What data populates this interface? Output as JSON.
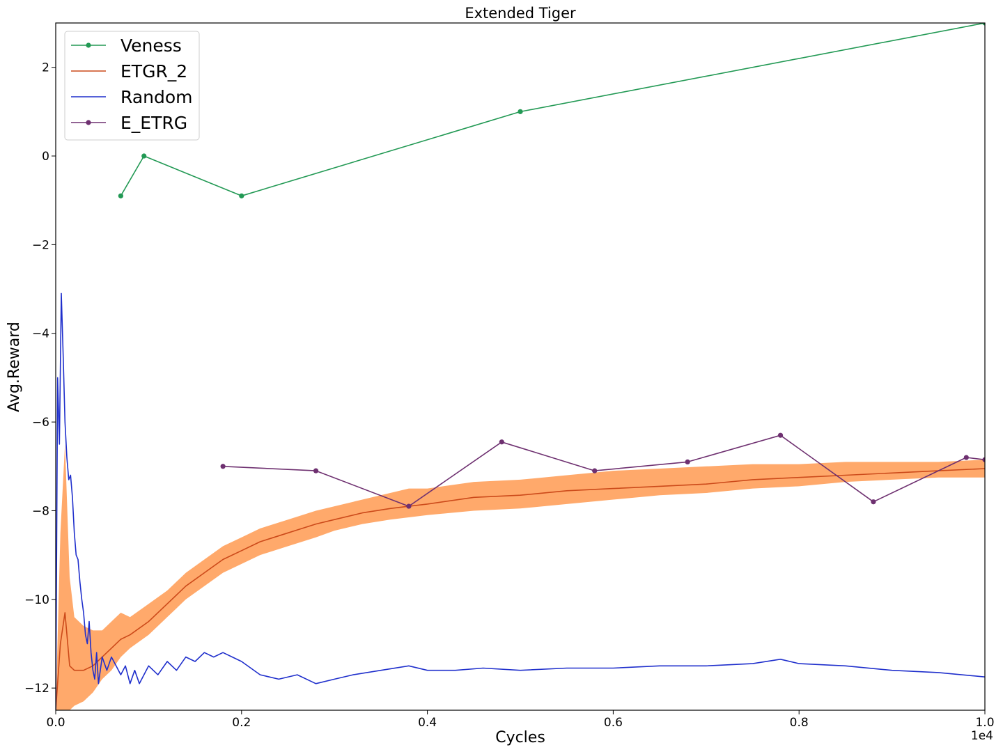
{
  "chart_data": {
    "type": "line",
    "title": "Extended Tiger",
    "xlabel": "Cycles",
    "ylabel": "Avg.Reward",
    "x_offset_label": "1e4",
    "xlim": [
      0,
      1.0
    ],
    "ylim": [
      -12.5,
      3.0
    ],
    "x_ticks": [
      0.0,
      0.2,
      0.4,
      0.6,
      0.8,
      1.0
    ],
    "x_tick_labels": [
      "0.0",
      "0.2",
      "0.4",
      "0.6",
      "0.8",
      "1.0"
    ],
    "y_ticks": [
      -12,
      -10,
      -8,
      -6,
      -4,
      -2,
      0,
      2
    ],
    "y_tick_labels": [
      "−12",
      "−10",
      "−8",
      "−6",
      "−4",
      "−2",
      "0",
      "2"
    ],
    "grid": false,
    "legend_position": "top-left",
    "series": [
      {
        "name": "Veness",
        "color": "#229954",
        "marker": "circle",
        "x": [
          0.07,
          0.095,
          0.2,
          0.5,
          1.0
        ],
        "y": [
          -0.9,
          0.0,
          -0.9,
          1.0,
          3.0
        ]
      },
      {
        "name": "ETGR_2",
        "color": "#cc4a1a",
        "band_color": "#ffa96b",
        "marker": "none",
        "x": [
          0.0,
          0.005,
          0.01,
          0.015,
          0.02,
          0.03,
          0.04,
          0.05,
          0.06,
          0.07,
          0.08,
          0.1,
          0.12,
          0.14,
          0.16,
          0.18,
          0.2,
          0.22,
          0.25,
          0.28,
          0.3,
          0.33,
          0.36,
          0.38,
          0.4,
          0.45,
          0.5,
          0.55,
          0.6,
          0.65,
          0.7,
          0.75,
          0.8,
          0.85,
          0.9,
          0.95,
          1.0
        ],
        "y": [
          -12.5,
          -11.0,
          -10.3,
          -11.5,
          -11.6,
          -11.6,
          -11.5,
          -11.3,
          -11.1,
          -10.9,
          -10.8,
          -10.5,
          -10.1,
          -9.7,
          -9.4,
          -9.1,
          -8.9,
          -8.7,
          -8.5,
          -8.3,
          -8.2,
          -8.05,
          -7.95,
          -7.9,
          -7.85,
          -7.7,
          -7.65,
          -7.55,
          -7.5,
          -7.45,
          -7.4,
          -7.3,
          -7.25,
          -7.2,
          -7.15,
          -7.1,
          -7.05
        ],
        "y_lower": [
          -12.5,
          -12.5,
          -12.5,
          -12.5,
          -12.4,
          -12.3,
          -12.1,
          -11.8,
          -11.6,
          -11.3,
          -11.1,
          -10.8,
          -10.4,
          -10.0,
          -9.7,
          -9.4,
          -9.2,
          -9.0,
          -8.8,
          -8.6,
          -8.45,
          -8.3,
          -8.2,
          -8.15,
          -8.1,
          -8.0,
          -7.95,
          -7.85,
          -7.75,
          -7.65,
          -7.6,
          -7.5,
          -7.45,
          -7.35,
          -7.3,
          -7.25,
          -7.25
        ],
        "y_upper": [
          -12.5,
          -8.5,
          -6.5,
          -9.5,
          -10.4,
          -10.6,
          -10.7,
          -10.7,
          -10.5,
          -10.3,
          -10.4,
          -10.1,
          -9.8,
          -9.4,
          -9.1,
          -8.8,
          -8.6,
          -8.4,
          -8.2,
          -8.0,
          -7.9,
          -7.75,
          -7.6,
          -7.5,
          -7.5,
          -7.35,
          -7.3,
          -7.2,
          -7.1,
          -7.05,
          -7.0,
          -6.95,
          -6.95,
          -6.9,
          -6.9,
          -6.9,
          -6.85
        ]
      },
      {
        "name": "Random",
        "color": "#1f2fcc",
        "marker": "none",
        "x": [
          0.0,
          0.002,
          0.004,
          0.006,
          0.008,
          0.01,
          0.012,
          0.014,
          0.016,
          0.018,
          0.02,
          0.022,
          0.024,
          0.026,
          0.028,
          0.03,
          0.032,
          0.034,
          0.036,
          0.038,
          0.04,
          0.042,
          0.044,
          0.046,
          0.048,
          0.05,
          0.055,
          0.06,
          0.065,
          0.07,
          0.075,
          0.08,
          0.085,
          0.09,
          0.1,
          0.11,
          0.12,
          0.13,
          0.14,
          0.15,
          0.16,
          0.17,
          0.18,
          0.19,
          0.2,
          0.22,
          0.24,
          0.26,
          0.28,
          0.3,
          0.32,
          0.35,
          0.38,
          0.4,
          0.43,
          0.46,
          0.5,
          0.55,
          0.6,
          0.65,
          0.7,
          0.75,
          0.78,
          0.8,
          0.85,
          0.9,
          0.95,
          1.0
        ],
        "y": [
          -12.5,
          -5.0,
          -6.5,
          -3.1,
          -4.5,
          -6.0,
          -6.8,
          -7.3,
          -7.2,
          -7.7,
          -8.5,
          -9.0,
          -9.1,
          -9.6,
          -10.0,
          -10.3,
          -10.8,
          -11.0,
          -10.5,
          -11.2,
          -11.6,
          -11.8,
          -11.2,
          -11.9,
          -11.6,
          -11.3,
          -11.6,
          -11.3,
          -11.5,
          -11.7,
          -11.5,
          -11.9,
          -11.6,
          -11.9,
          -11.5,
          -11.7,
          -11.4,
          -11.6,
          -11.3,
          -11.4,
          -11.2,
          -11.3,
          -11.2,
          -11.3,
          -11.4,
          -11.7,
          -11.8,
          -11.7,
          -11.9,
          -11.8,
          -11.7,
          -11.6,
          -11.5,
          -11.6,
          -11.6,
          -11.55,
          -11.6,
          -11.55,
          -11.55,
          -11.5,
          -11.5,
          -11.45,
          -11.35,
          -11.45,
          -11.5,
          -11.6,
          -11.65,
          -11.75
        ]
      },
      {
        "name": "E_ETRG",
        "color": "#6e3070",
        "marker": "circle",
        "x": [
          0.18,
          0.28,
          0.38,
          0.48,
          0.58,
          0.68,
          0.78,
          0.88,
          0.98,
          1.0
        ],
        "y": [
          -7.0,
          -7.1,
          -7.9,
          -6.45,
          -7.1,
          -6.9,
          -6.3,
          -7.8,
          -6.8,
          -6.85
        ]
      }
    ]
  }
}
